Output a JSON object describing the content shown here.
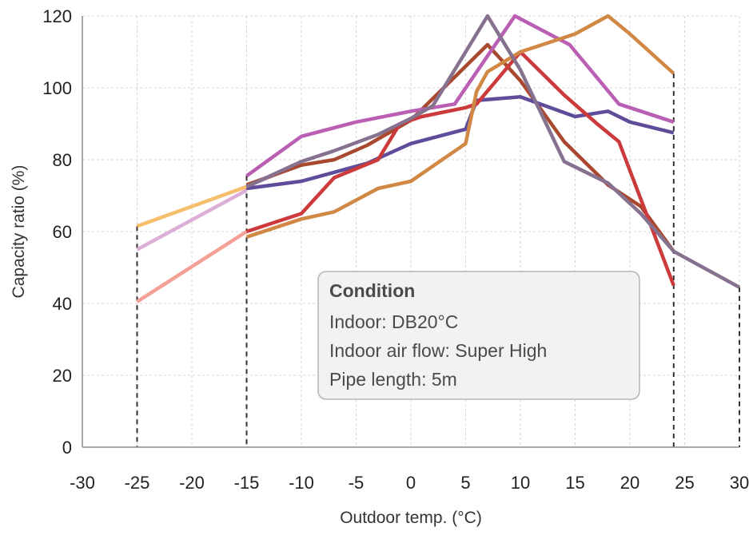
{
  "chart_data": {
    "type": "line",
    "title": "",
    "xlabel": "Outdoor temp. (°C)",
    "ylabel": "Capacity ratio (%)",
    "xlim": [
      -30,
      30
    ],
    "ylim": [
      0,
      120
    ],
    "x_ticks": [
      -30,
      -25,
      -20,
      -15,
      -10,
      -5,
      0,
      5,
      10,
      15,
      20,
      25,
      30
    ],
    "y_ticks": [
      0,
      20,
      40,
      60,
      80,
      100,
      120
    ],
    "grid": true,
    "legend": "none",
    "reference_lines_x": [
      -25,
      -15,
      24,
      30
    ],
    "series": [
      {
        "color": "#f6bd6a",
        "points": [
          [
            -25,
            61.5
          ],
          [
            -15,
            72.5
          ]
        ]
      },
      {
        "color": "#dcb0d6",
        "points": [
          [
            -25,
            55
          ],
          [
            -15,
            71.5
          ]
        ]
      },
      {
        "color": "#f4a096",
        "points": [
          [
            -25,
            40.5
          ],
          [
            -15,
            60
          ]
        ]
      },
      {
        "color": "#c9a0c8",
        "points": [
          [
            -15,
            72.5
          ],
          [
            -10,
            79
          ]
        ]
      },
      {
        "color": "#a8482e",
        "points": [
          [
            -15,
            73
          ],
          [
            -10,
            78.5
          ],
          [
            -7,
            80
          ],
          [
            -4,
            84
          ],
          [
            0,
            91
          ],
          [
            3,
            100
          ],
          [
            7,
            112
          ],
          [
            10,
            102
          ],
          [
            14,
            85
          ],
          [
            18,
            73
          ],
          [
            21,
            67
          ],
          [
            24,
            54.5
          ]
        ]
      },
      {
        "color": "#5f4c9a",
        "points": [
          [
            -15,
            72
          ],
          [
            -10,
            74
          ],
          [
            -7,
            76.5
          ],
          [
            -4,
            79
          ],
          [
            0,
            84.5
          ],
          [
            5,
            88.5
          ],
          [
            6,
            96.5
          ],
          [
            10,
            97.5
          ],
          [
            15,
            92
          ],
          [
            18,
            93.5
          ],
          [
            20,
            90.5
          ],
          [
            24,
            87.5
          ]
        ]
      },
      {
        "color": "#ba5fb4",
        "points": [
          [
            -15,
            75.5
          ],
          [
            -10,
            86.5
          ],
          [
            -5,
            90.5
          ],
          [
            0,
            93.5
          ],
          [
            4,
            95.5
          ],
          [
            9.5,
            120
          ],
          [
            14.5,
            112
          ],
          [
            19,
            95.5
          ],
          [
            24,
            90.5
          ]
        ]
      },
      {
        "color": "#cc3a3c",
        "points": [
          [
            -15,
            60
          ],
          [
            -10,
            65
          ],
          [
            -7,
            75
          ],
          [
            -3,
            80
          ],
          [
            -1,
            90
          ],
          [
            1,
            92
          ],
          [
            5,
            94.5
          ],
          [
            6,
            95.5
          ],
          [
            10,
            110
          ],
          [
            14,
            98
          ],
          [
            17,
            90
          ],
          [
            19,
            85
          ],
          [
            24,
            45
          ]
        ]
      },
      {
        "color": "#d18844",
        "points": [
          [
            -15,
            58.5
          ],
          [
            -10,
            63.5
          ],
          [
            -7,
            65.5
          ],
          [
            -3,
            72
          ],
          [
            0,
            74
          ],
          [
            5,
            84.5
          ],
          [
            6,
            99
          ],
          [
            7,
            104.5
          ],
          [
            10,
            110
          ],
          [
            15,
            115
          ],
          [
            18,
            120
          ],
          [
            20,
            115
          ],
          [
            24,
            104
          ]
        ]
      },
      {
        "color": "#86718e",
        "points": [
          [
            -15,
            72.5
          ],
          [
            -10,
            79.5
          ],
          [
            -7,
            82.5
          ],
          [
            -3,
            87
          ],
          [
            0,
            91.5
          ],
          [
            2,
            95
          ],
          [
            7,
            120
          ],
          [
            10,
            105
          ],
          [
            14,
            79.5
          ],
          [
            18,
            73.5
          ],
          [
            21,
            65
          ],
          [
            24,
            54.5
          ],
          [
            30,
            44.5
          ]
        ]
      }
    ],
    "annotation": {
      "title": "Condition",
      "lines": [
        "Indoor: DB20°C",
        "Indoor air flow: Super High",
        "Pipe length: 5m"
      ]
    }
  }
}
